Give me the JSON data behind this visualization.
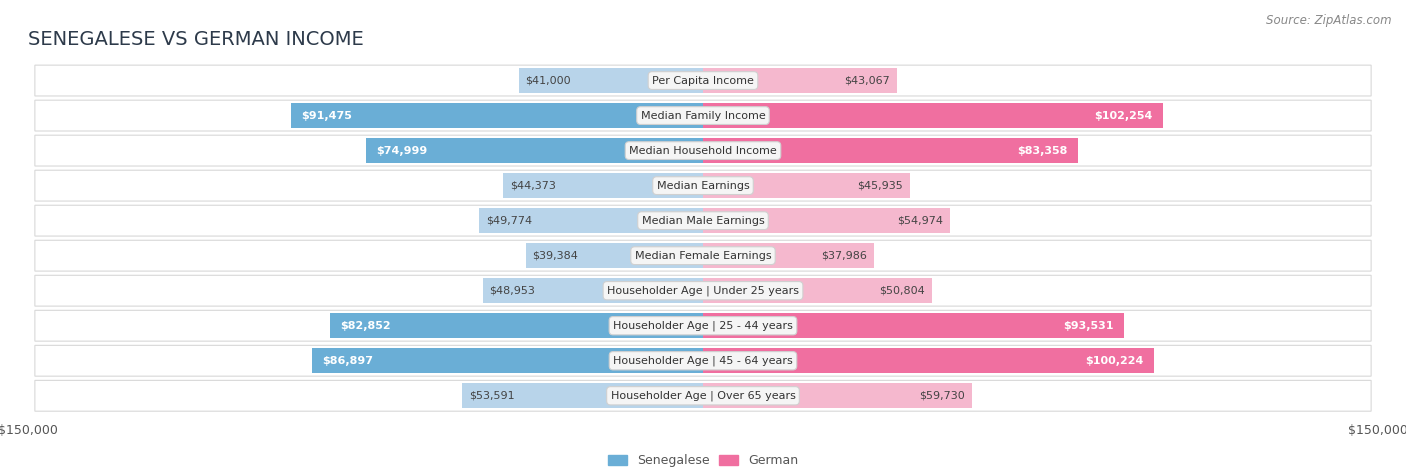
{
  "title": "SENEGALESE VS GERMAN INCOME",
  "source": "Source: ZipAtlas.com",
  "categories": [
    "Per Capita Income",
    "Median Family Income",
    "Median Household Income",
    "Median Earnings",
    "Median Male Earnings",
    "Median Female Earnings",
    "Householder Age | Under 25 years",
    "Householder Age | 25 - 44 years",
    "Householder Age | 45 - 64 years",
    "Householder Age | Over 65 years"
  ],
  "senegalese": [
    41000,
    91475,
    74999,
    44373,
    49774,
    39384,
    48953,
    82852,
    86897,
    53591
  ],
  "german": [
    43067,
    102254,
    83358,
    45935,
    54974,
    37986,
    50804,
    93531,
    100224,
    59730
  ],
  "max_val": 150000,
  "color_senegalese_dark": "#6aaed6",
  "color_senegalese_light": "#b8d4ea",
  "color_german_dark": "#f06fa0",
  "color_german_light": "#f5b8ce",
  "bg_color": "#ffffff",
  "row_bg": "#ffffff",
  "row_border": "#d8d8d8",
  "label_bg": "#f5f5f5",
  "label_border": "#d0d0d0",
  "dark_threshold": 60000,
  "bar_height": 0.72,
  "title_fontsize": 14,
  "label_fontsize": 8.0,
  "value_fontsize": 8.0,
  "legend_fontsize": 9,
  "source_fontsize": 8.5,
  "title_color": "#2d3a4a",
  "value_color_dark": "#444444",
  "value_color_inside": "#ffffff"
}
